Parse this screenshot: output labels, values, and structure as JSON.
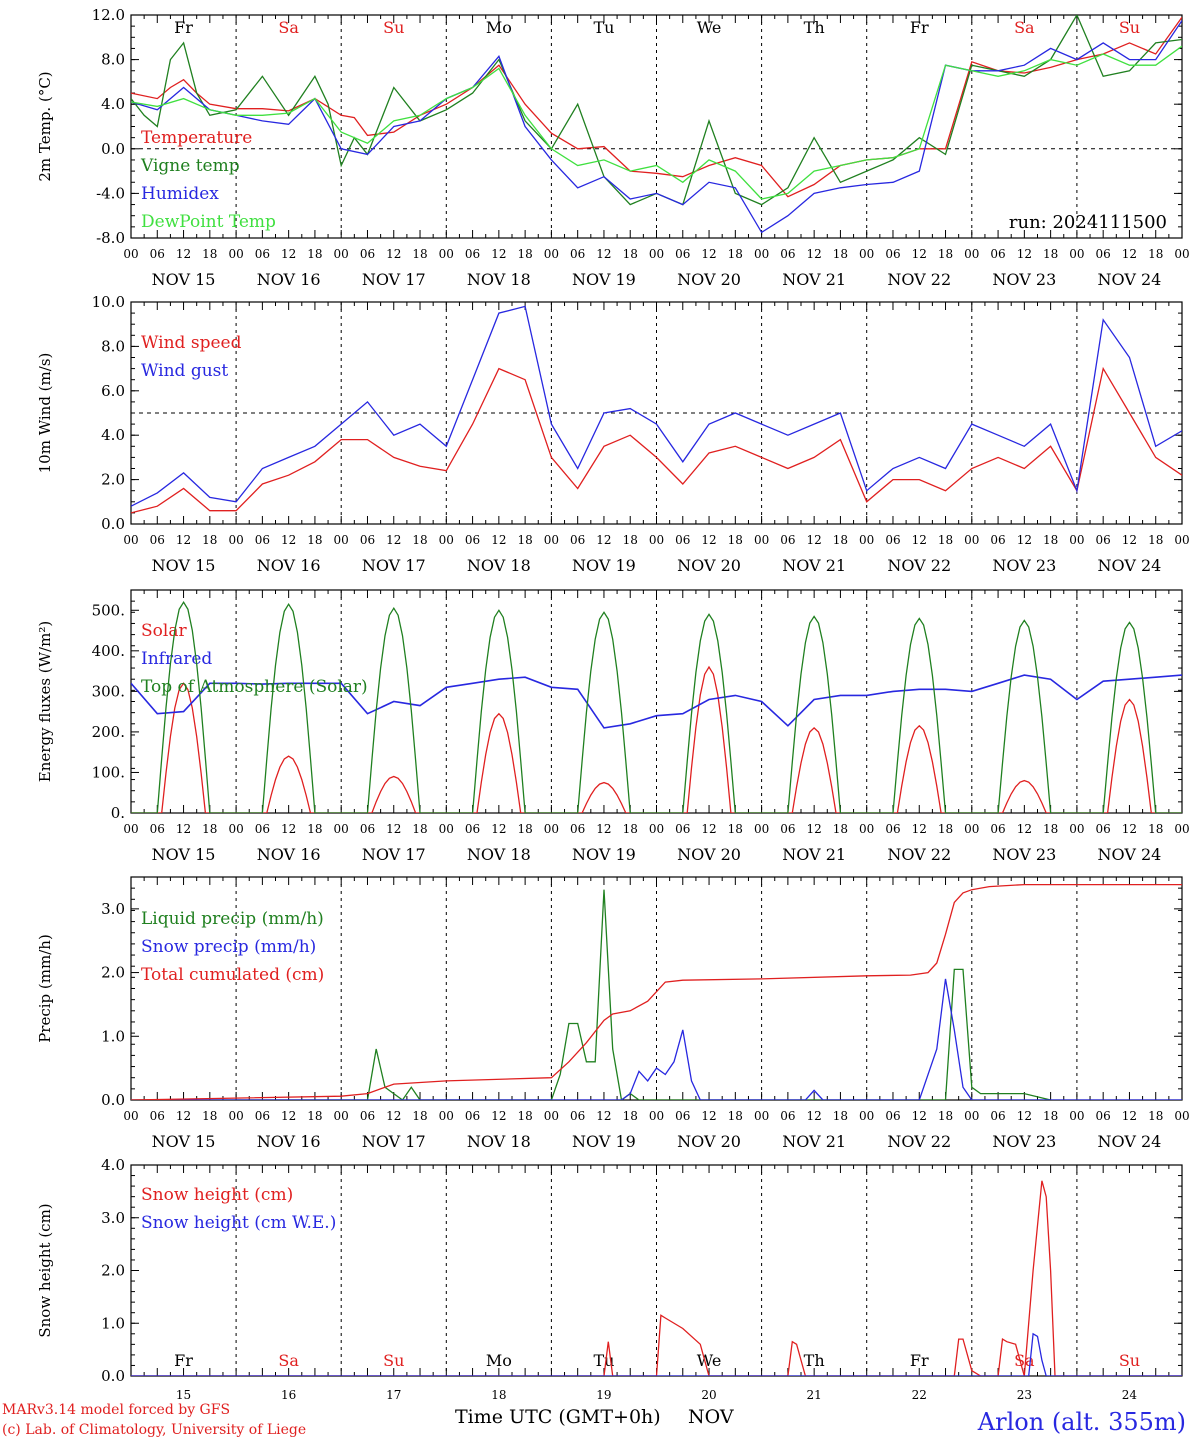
{
  "station": "Arlon (alt. 355m)",
  "footer": {
    "model": "MARv3.14 model forced by GFS",
    "credit": "(c) Lab. of Climatology, University of Liege",
    "xlabel": "Time UTC (GMT+0h)",
    "month": "NOV"
  },
  "colors": {
    "red": "#e02020",
    "green": "#208020",
    "blue": "#2828e0",
    "light_green": "#40e040",
    "weekend": "#e02020",
    "weekday": "#000000"
  },
  "days": {
    "dow": [
      "Fr",
      "Sa",
      "Su",
      "Mo",
      "Tu",
      "We",
      "Th",
      "Fr",
      "Sa",
      "Su"
    ],
    "weekend": [
      false,
      true,
      true,
      false,
      false,
      false,
      false,
      false,
      true,
      true
    ],
    "dates": [
      "NOV 15",
      "NOV 16",
      "NOV 17",
      "NOV 18",
      "NOV 19",
      "NOV 20",
      "NOV 21",
      "NOV 22",
      "NOV 23",
      "NOV 24"
    ],
    "day_numbers": [
      "15",
      "16",
      "17",
      "18",
      "19",
      "20",
      "21",
      "22",
      "23",
      "24"
    ],
    "hour_labels": [
      "00",
      "06",
      "12",
      "18"
    ]
  },
  "chart_data": [
    {
      "type": "line",
      "ylabel": "2m Temp. (°C)",
      "ylim": [
        -8,
        12
      ],
      "yticks": [
        "-8.0",
        "-4.0",
        "0.0",
        "4.0",
        "8.0",
        "12.0"
      ],
      "reference_line": 0,
      "annotation": "run: 2024111500",
      "x_unit": "hours from 2024-11-15 00 UTC",
      "series": [
        {
          "name": "Temperature",
          "color": "red",
          "x": [
            0,
            6,
            9,
            12,
            15,
            18,
            24,
            30,
            36,
            42,
            48,
            51,
            54,
            60,
            66,
            72,
            78,
            84,
            90,
            96,
            102,
            108,
            114,
            120,
            126,
            132,
            138,
            144,
            150,
            156,
            162,
            168,
            174,
            180,
            186,
            192,
            198,
            204,
            210,
            216,
            222,
            228,
            234,
            240
          ],
          "y": [
            5,
            4.5,
            5.5,
            6.2,
            5,
            4,
            3.6,
            3.6,
            3.4,
            4.5,
            3,
            2.8,
            1.2,
            1.5,
            3,
            4,
            5.5,
            7.5,
            4,
            1.4,
            0,
            0.2,
            -2,
            -2.2,
            -2.5,
            -1.5,
            -0.8,
            -1.5,
            -4.3,
            -3.2,
            -1.5,
            -1,
            -0.8,
            0,
            0,
            7.8,
            7,
            6.8,
            7.3,
            8,
            8.5,
            9.5,
            8.5,
            11.8
          ]
        },
        {
          "name": "Vigne temp",
          "color": "green",
          "x": [
            0,
            3,
            6,
            9,
            12,
            15,
            18,
            24,
            30,
            36,
            42,
            45,
            48,
            51,
            54,
            60,
            66,
            72,
            78,
            84,
            90,
            96,
            102,
            108,
            114,
            120,
            126,
            132,
            138,
            144,
            150,
            156,
            162,
            168,
            174,
            180,
            186,
            192,
            198,
            204,
            210,
            216,
            222,
            228,
            234,
            240
          ],
          "y": [
            4.5,
            3,
            2,
            8,
            9.5,
            5,
            3,
            3.5,
            6.5,
            3,
            6.5,
            4,
            -1.5,
            1,
            -0.5,
            5.5,
            2.5,
            3.5,
            5,
            8,
            2.5,
            0,
            4,
            -2.5,
            -5,
            -4,
            -5,
            2.5,
            -4,
            -5,
            -3.5,
            1,
            -3,
            -2,
            -1,
            1,
            -0.5,
            7.5,
            7,
            6.5,
            8,
            12,
            6.5,
            7,
            9.5,
            9.8
          ]
        },
        {
          "name": "Humidex",
          "color": "blue",
          "x": [
            0,
            6,
            12,
            18,
            24,
            30,
            36,
            42,
            48,
            54,
            60,
            66,
            72,
            78,
            84,
            90,
            96,
            102,
            108,
            114,
            120,
            126,
            132,
            138,
            144,
            150,
            156,
            162,
            168,
            174,
            180,
            186,
            192,
            198,
            204,
            210,
            216,
            222,
            228,
            234,
            240
          ],
          "y": [
            4.2,
            3.5,
            5.5,
            3.5,
            3,
            2.5,
            2.2,
            4.5,
            0,
            -0.5,
            2,
            2.5,
            4.5,
            5.5,
            8.3,
            2,
            -1,
            -3.5,
            -2.5,
            -4.5,
            -4,
            -5,
            -3,
            -3.5,
            -7.5,
            -6,
            -4,
            -3.5,
            -3.2,
            -3,
            -2,
            7.5,
            7,
            7,
            7.5,
            9,
            8,
            9.5,
            8,
            8,
            11.5
          ]
        },
        {
          "name": "DewPoint Temp",
          "color": "light_green",
          "x": [
            0,
            6,
            12,
            18,
            24,
            30,
            36,
            42,
            48,
            54,
            60,
            66,
            72,
            78,
            84,
            90,
            96,
            102,
            108,
            114,
            120,
            126,
            132,
            138,
            144,
            150,
            156,
            162,
            168,
            174,
            180,
            186,
            192,
            198,
            204,
            210,
            216,
            222,
            228,
            234,
            240
          ],
          "y": [
            4.2,
            3.8,
            4.5,
            3.5,
            3,
            3,
            3.2,
            4.5,
            1.5,
            0.5,
            2.5,
            3,
            4.5,
            5.5,
            7.2,
            3,
            0,
            -1.5,
            -1,
            -2,
            -1.5,
            -3,
            -1,
            -2,
            -4.5,
            -4,
            -2,
            -1.5,
            -1,
            -0.8,
            0,
            7.5,
            7,
            6.5,
            7,
            8,
            7.5,
            8.5,
            7.5,
            7.5,
            9.2
          ]
        }
      ]
    },
    {
      "type": "line",
      "ylabel": "10m Wind (m/s)",
      "ylim": [
        0,
        10
      ],
      "yticks": [
        "0.0",
        "2.0",
        "4.0",
        "6.0",
        "8.0",
        "10.0"
      ],
      "reference_line": 5,
      "series": [
        {
          "name": "Wind speed",
          "color": "red",
          "x": [
            0,
            6,
            12,
            18,
            24,
            30,
            36,
            42,
            48,
            54,
            60,
            66,
            72,
            78,
            84,
            90,
            96,
            102,
            108,
            114,
            120,
            126,
            132,
            138,
            144,
            150,
            156,
            162,
            168,
            174,
            180,
            186,
            192,
            198,
            204,
            210,
            216,
            222,
            228,
            234,
            240
          ],
          "y": [
            0.5,
            0.8,
            1.6,
            0.6,
            0.6,
            1.8,
            2.2,
            2.8,
            3.8,
            3.8,
            3,
            2.6,
            2.4,
            4.5,
            7,
            6.5,
            3,
            1.6,
            3.5,
            4,
            3,
            1.8,
            3.2,
            3.5,
            3,
            2.5,
            3,
            3.8,
            1,
            2,
            2,
            1.5,
            2.5,
            3,
            2.5,
            3.5,
            1.5,
            7,
            5,
            3,
            2.2
          ]
        },
        {
          "name": "Wind gust",
          "color": "blue",
          "x": [
            0,
            6,
            12,
            18,
            24,
            30,
            36,
            42,
            48,
            54,
            60,
            66,
            72,
            78,
            84,
            90,
            96,
            102,
            108,
            114,
            120,
            126,
            132,
            138,
            144,
            150,
            156,
            162,
            168,
            174,
            180,
            186,
            192,
            198,
            204,
            210,
            216,
            222,
            228,
            234,
            240
          ],
          "y": [
            0.8,
            1.4,
            2.3,
            1.2,
            1,
            2.5,
            3,
            3.5,
            4.5,
            5.5,
            4,
            4.5,
            3.5,
            6.5,
            9.5,
            9.8,
            4.5,
            2.5,
            5,
            5.2,
            4.5,
            2.8,
            4.5,
            5,
            4.5,
            4,
            4.5,
            5,
            1.5,
            2.5,
            3,
            2.5,
            4.5,
            4,
            3.5,
            4.5,
            1.5,
            9.2,
            7.5,
            3.5,
            4.2
          ]
        }
      ]
    },
    {
      "type": "line",
      "ylabel": "Energy fluxes (W/m²)",
      "ylim": [
        0,
        550
      ],
      "yticks": [
        "0.",
        "100.",
        "200.",
        "300.",
        "400.",
        "500."
      ],
      "series": [
        {
          "name": "Solar",
          "color": "red",
          "peaks": [
            320,
            140,
            90,
            245,
            75,
            360,
            210,
            215,
            80,
            280
          ]
        },
        {
          "name": "Infrared",
          "color": "blue",
          "x": [
            0,
            6,
            12,
            18,
            24,
            30,
            36,
            42,
            48,
            54,
            60,
            66,
            72,
            78,
            84,
            90,
            96,
            102,
            108,
            114,
            120,
            126,
            132,
            138,
            144,
            150,
            156,
            162,
            168,
            174,
            180,
            186,
            192,
            198,
            204,
            210,
            216,
            222,
            228,
            234,
            240
          ],
          "y": [
            320,
            245,
            250,
            320,
            320,
            318,
            320,
            320,
            320,
            245,
            275,
            265,
            310,
            320,
            330,
            335,
            310,
            305,
            210,
            220,
            240,
            245,
            280,
            290,
            275,
            215,
            280,
            290,
            290,
            300,
            305,
            305,
            300,
            320,
            340,
            330,
            280,
            325,
            330,
            335,
            340
          ]
        },
        {
          "name": "Top of Atmosphere (Solar)",
          "color": "green",
          "peaks": [
            520,
            515,
            505,
            500,
            495,
            490,
            485,
            480,
            475,
            470
          ]
        }
      ]
    },
    {
      "type": "line",
      "ylabel": "Precip (mm/h)",
      "ylim": [
        0,
        3.5
      ],
      "yticks": [
        "0.0",
        "1.0",
        "2.0",
        "3.0"
      ],
      "series": [
        {
          "name": "Liquid precip (mm/h)",
          "color": "green",
          "x": [
            0,
            48,
            54,
            56,
            58,
            62,
            64,
            66,
            70,
            96,
            98,
            100,
            102,
            104,
            106,
            108,
            110,
            112,
            114,
            116,
            118,
            120,
            186,
            188,
            190,
            192,
            194,
            198,
            204,
            210
          ],
          "y": [
            0,
            0,
            0,
            0.8,
            0.2,
            0,
            0.2,
            0,
            0,
            0,
            0.4,
            1.2,
            1.2,
            0.6,
            0.6,
            3.3,
            0.8,
            0,
            0.1,
            0,
            0,
            0,
            0,
            2.05,
            2.05,
            0.2,
            0.1,
            0.1,
            0.1,
            0
          ]
        },
        {
          "name": "Snow precip (mm/h)",
          "color": "blue",
          "x": [
            0,
            112,
            114,
            116,
            118,
            120,
            122,
            124,
            126,
            128,
            130,
            154,
            156,
            158,
            160,
            180,
            184,
            186,
            188,
            190,
            192,
            240
          ],
          "y": [
            0,
            0,
            0.1,
            0.45,
            0.3,
            0.5,
            0.4,
            0.6,
            1.1,
            0.3,
            0,
            0,
            0.15,
            0,
            0,
            0,
            0.8,
            1.9,
            1.1,
            0.2,
            0,
            0
          ]
        },
        {
          "name": "Total cumulated (cm)",
          "color": "red",
          "x": [
            0,
            48,
            54,
            60,
            72,
            96,
            100,
            104,
            108,
            110,
            114,
            118,
            120,
            122,
            126,
            144,
            168,
            178,
            182,
            184,
            186,
            188,
            190,
            192,
            196,
            204,
            216,
            240
          ],
          "y": [
            0,
            0.06,
            0.1,
            0.25,
            0.3,
            0.35,
            0.6,
            0.9,
            1.25,
            1.35,
            1.4,
            1.55,
            1.7,
            1.85,
            1.88,
            1.9,
            1.95,
            1.96,
            2.0,
            2.15,
            2.6,
            3.1,
            3.25,
            3.3,
            3.35,
            3.38,
            3.38,
            3.38
          ]
        }
      ]
    },
    {
      "type": "line",
      "ylabel": "Snow height (cm)",
      "ylim": [
        0,
        4
      ],
      "yticks": [
        "0.0",
        "1.0",
        "2.0",
        "3.0",
        "4.0"
      ],
      "series": [
        {
          "name": "Snow height (cm)",
          "color": "red",
          "x": [
            0,
            108,
            109,
            110,
            111,
            119,
            120,
            121,
            122,
            126,
            130,
            132,
            134,
            150,
            151,
            152,
            154,
            188,
            189,
            190,
            192,
            194,
            198,
            199,
            200,
            202,
            204,
            206,
            208,
            209,
            210,
            211,
            240
          ],
          "y": [
            0,
            0,
            0.65,
            0,
            0,
            0,
            0,
            1.15,
            1.1,
            0.9,
            0.6,
            0,
            0,
            0,
            0.65,
            0.6,
            0,
            0,
            0.7,
            0.7,
            0.1,
            0,
            0,
            0.7,
            0.65,
            0.6,
            0,
            2,
            3.7,
            3.4,
            2,
            0,
            0
          ]
        },
        {
          "name": "Snow height (cm W.E.)",
          "color": "blue",
          "x": [
            0,
            205,
            206,
            207,
            208,
            209,
            210,
            240
          ],
          "y": [
            0,
            0,
            0.8,
            0.75,
            0.3,
            0,
            0,
            0
          ]
        }
      ]
    }
  ]
}
